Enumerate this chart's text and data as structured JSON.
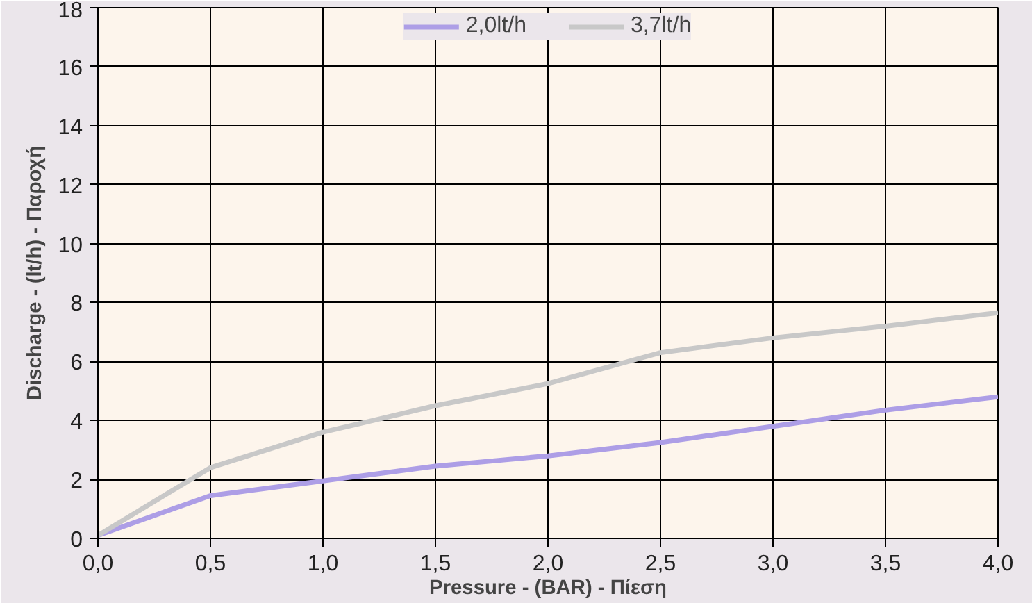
{
  "chart_data": {
    "type": "line",
    "xlabel": "Pressure - (BAR) - Πίεση",
    "ylabel": "Discharge - (lt/h) - Παροχή",
    "x": [
      0,
      0.5,
      1.0,
      1.5,
      2.0,
      2.5,
      3.0,
      3.5,
      4.0
    ],
    "series": [
      {
        "name": "2,0lt/h",
        "color": "#ad9ee6",
        "values": [
          0.1,
          1.45,
          1.95,
          2.45,
          2.8,
          3.25,
          3.8,
          4.35,
          4.8
        ]
      },
      {
        "name": "3,7lt/h",
        "color": "#c8c8c8",
        "values": [
          0.1,
          2.4,
          3.6,
          4.5,
          5.25,
          6.3,
          6.8,
          7.2,
          7.65
        ]
      }
    ],
    "xlim": [
      0,
      4
    ],
    "ylim": [
      0,
      18
    ],
    "xticks": [
      {
        "value": 0,
        "label": "0,0"
      },
      {
        "value": 0.5,
        "label": "0,5"
      },
      {
        "value": 1,
        "label": "1,0"
      },
      {
        "value": 1.5,
        "label": "1,5"
      },
      {
        "value": 2,
        "label": "2,0"
      },
      {
        "value": 2.5,
        "label": "2,5"
      },
      {
        "value": 3,
        "label": "3,0"
      },
      {
        "value": 3.5,
        "label": "3,5"
      },
      {
        "value": 4,
        "label": "4,0"
      }
    ],
    "yticks": [
      0,
      2,
      4,
      6,
      8,
      10,
      12,
      14,
      16,
      18
    ],
    "grid": true,
    "legend": "top",
    "marker": "none",
    "line_style": "solid"
  }
}
